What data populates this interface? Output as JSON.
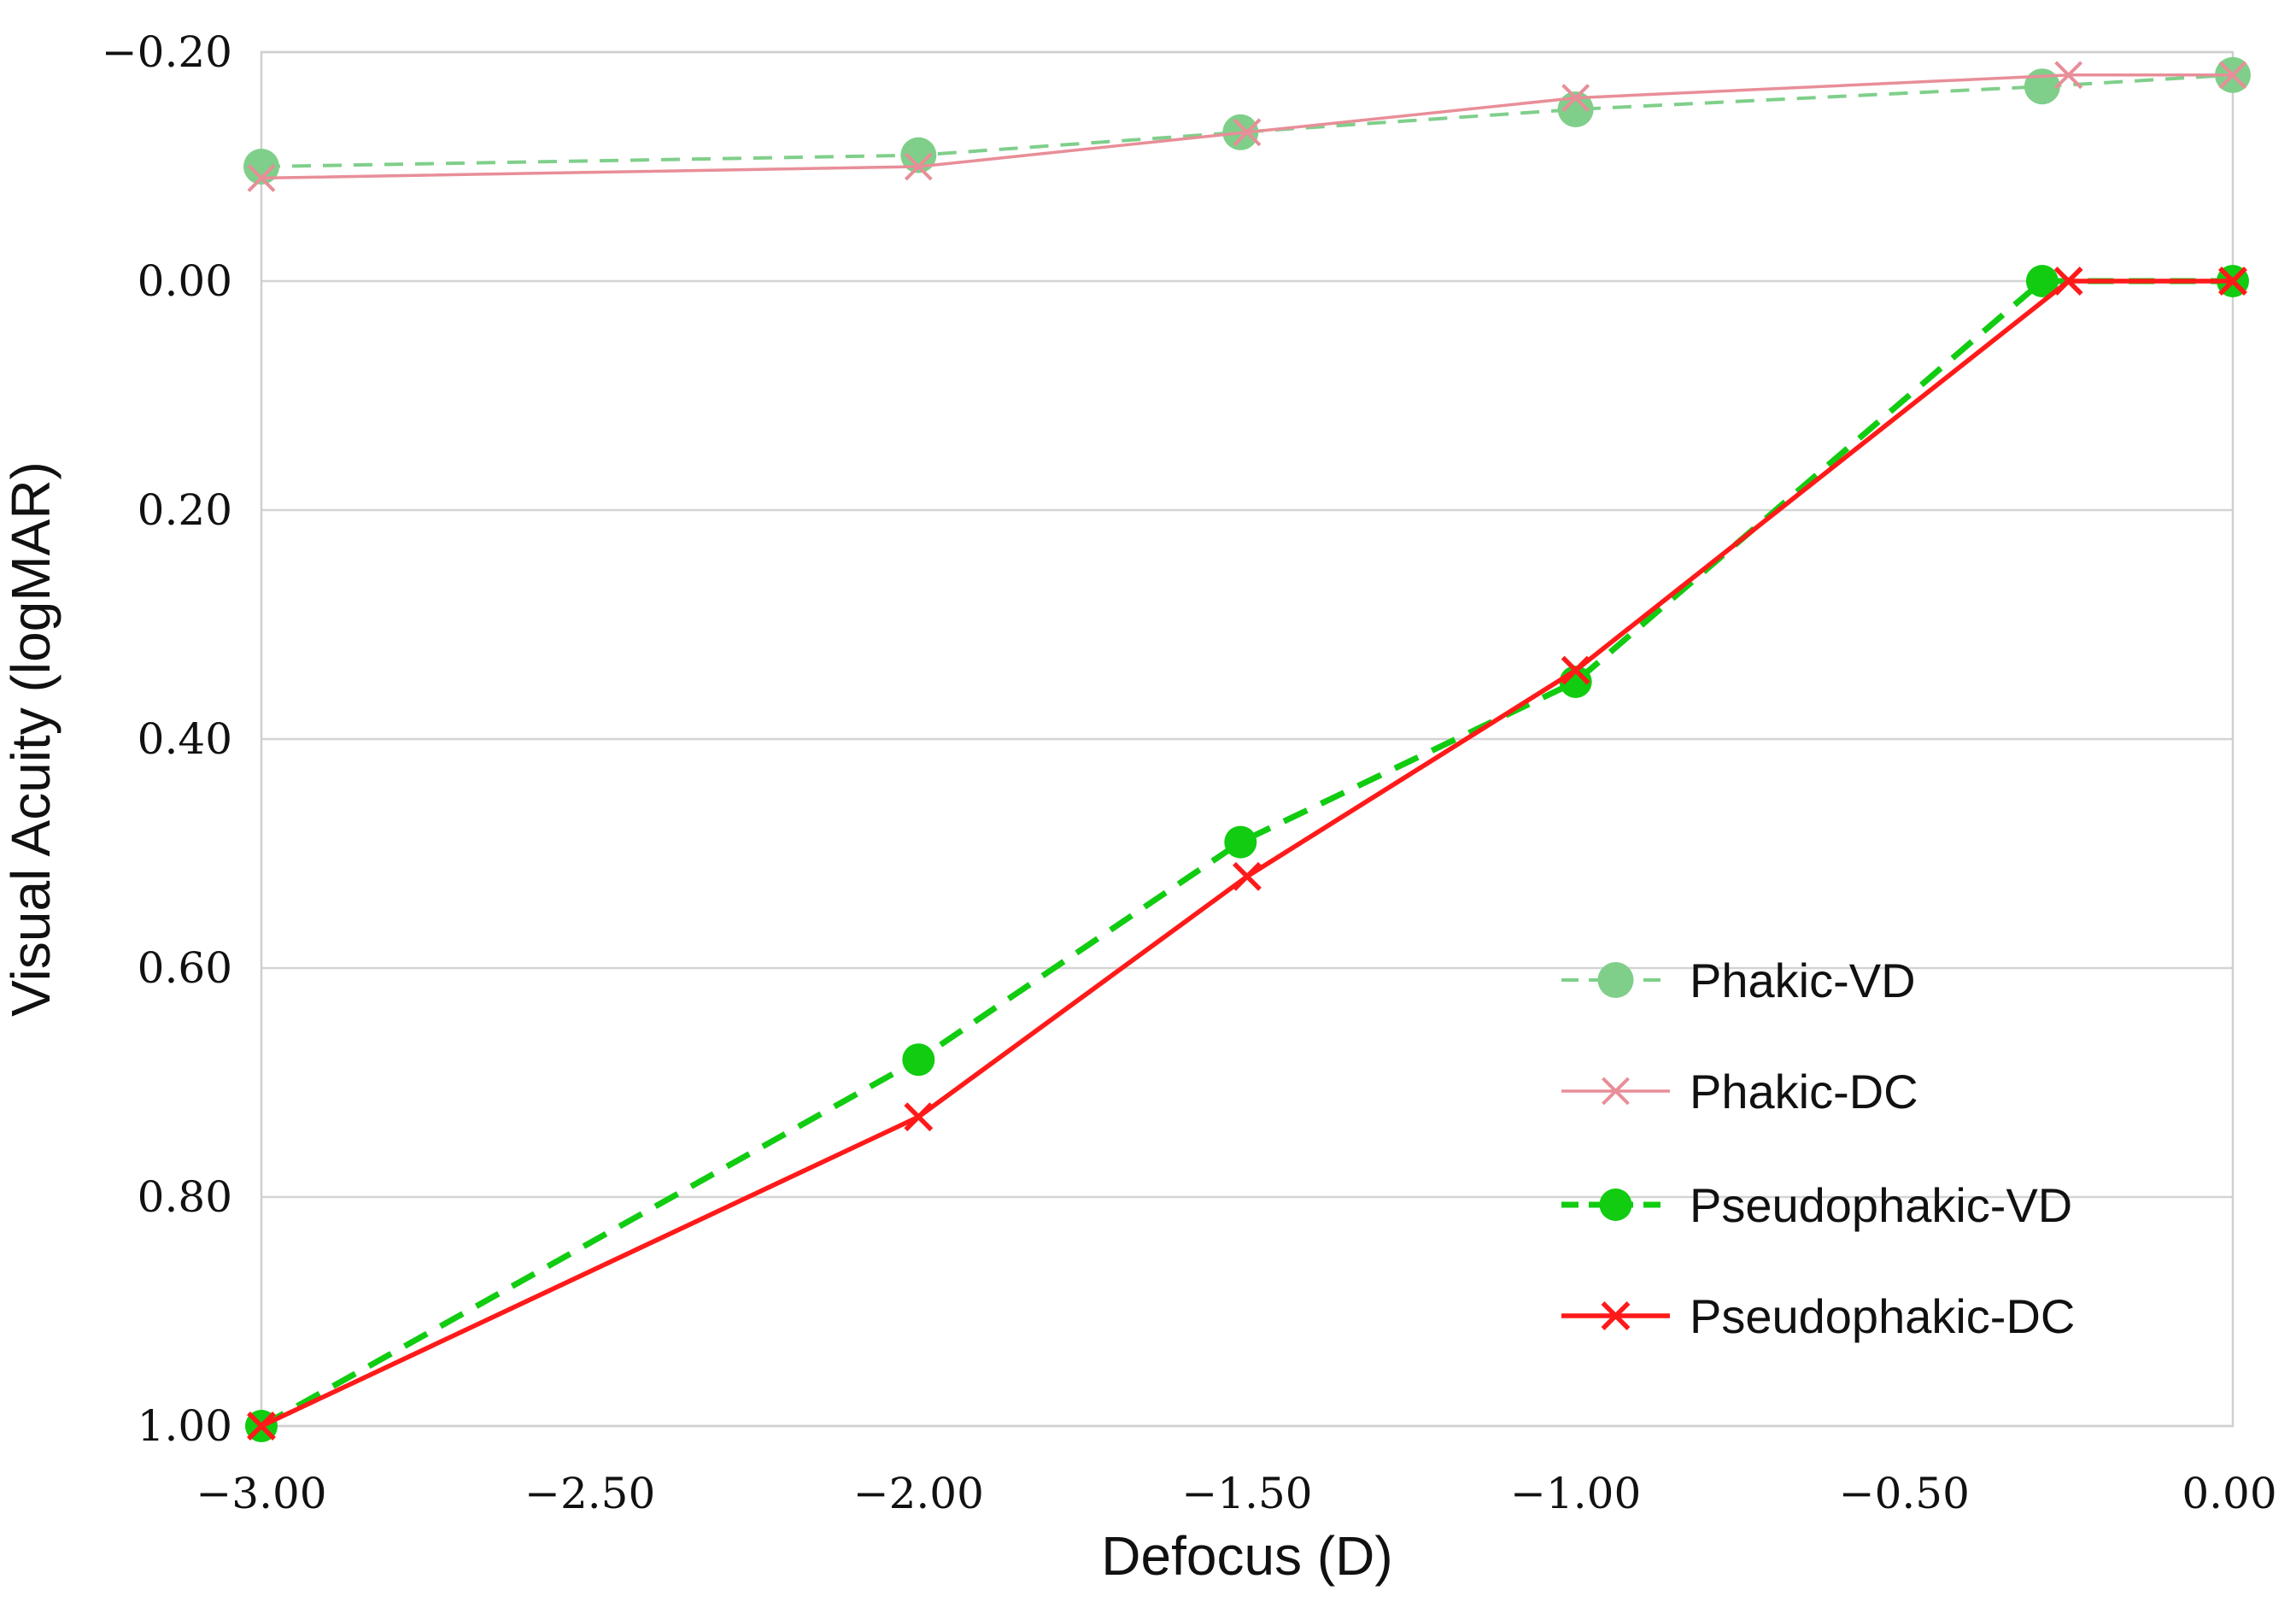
{
  "chart_data": {
    "type": "line",
    "title": "",
    "xlabel": "Defocus (D)",
    "ylabel": "Visual Acuity (logMAR)",
    "xlim": [
      -3.0,
      0.0
    ],
    "ylim": [
      1.0,
      -0.2
    ],
    "y_inverted": true,
    "grid": "horizontal",
    "legend_position": "bottom-right",
    "x_ticks": [
      -3.0,
      -2.5,
      -2.0,
      -1.5,
      -1.0,
      -0.5,
      0.0
    ],
    "x_tick_labels": [
      "−3.00",
      "−2.50",
      "−2.00",
      "−1.50",
      "−1.00",
      "−0.50",
      "0.00"
    ],
    "y_ticks": [
      -0.2,
      0.0,
      0.2,
      0.4,
      0.6,
      0.8,
      1.0
    ],
    "y_tick_labels": [
      "−0.20",
      "0.00",
      "0.20",
      "0.40",
      "0.60",
      "0.80",
      "1.00"
    ],
    "series": [
      {
        "name": "Phakic-VD",
        "color": "#7fcf8a",
        "line": "dashed-thin",
        "marker": "circle",
        "x": [
          -3.0,
          -2.0,
          -1.51,
          -1.0,
          -0.29,
          0.0
        ],
        "y": [
          -0.1,
          -0.11,
          -0.13,
          -0.15,
          -0.17,
          -0.18
        ]
      },
      {
        "name": "Phakic-DC",
        "color": "#e88e98",
        "line": "solid-thin",
        "marker": "cross",
        "x": [
          -3.0,
          -2.0,
          -1.5,
          -1.0,
          -0.25,
          0.0
        ],
        "y": [
          -0.09,
          -0.1,
          -0.13,
          -0.16,
          -0.18,
          -0.18
        ]
      },
      {
        "name": "Pseudophakic-VD",
        "color": "#11cc11",
        "line": "dashed-thick",
        "marker": "circle",
        "x": [
          -3.0,
          -2.0,
          -1.51,
          -1.0,
          -0.29,
          0.0
        ],
        "y": [
          1.0,
          0.68,
          0.49,
          0.35,
          0.0,
          0.0
        ]
      },
      {
        "name": "Pseudophakic-DC",
        "color": "#ff1a1a",
        "line": "solid-thick",
        "marker": "cross",
        "x": [
          -3.0,
          -2.0,
          -1.5,
          -1.0,
          -0.25,
          0.0
        ],
        "y": [
          1.0,
          0.73,
          0.52,
          0.34,
          0.0,
          0.0
        ]
      }
    ]
  }
}
